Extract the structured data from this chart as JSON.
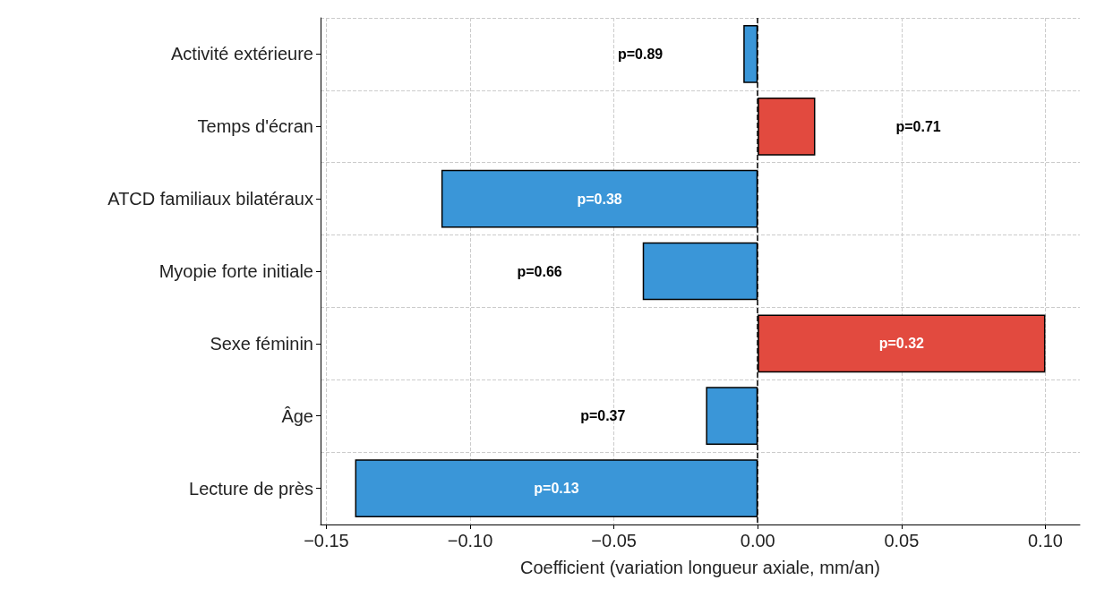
{
  "chart_data": {
    "type": "bar",
    "orientation": "horizontal",
    "xlabel": "Coefficient (variation longueur axiale, mm/an)",
    "categories": [
      "Activité extérieure",
      "Temps d'écran",
      "ATCD familiaux bilatéraux",
      "Myopie forte initiale",
      "Sexe féminin",
      "Âge",
      "Lecture de près"
    ],
    "values": [
      -0.005,
      0.02,
      -0.11,
      -0.04,
      0.1,
      -0.018,
      -0.14
    ],
    "colors": [
      "#3a96d8",
      "#e24a3f",
      "#3a96d8",
      "#3a96d8",
      "#e24a3f",
      "#3a96d8",
      "#3a96d8"
    ],
    "xlim": [
      -0.152,
      0.112
    ],
    "xticks": [
      {
        "value": -0.15,
        "label": "−0.15"
      },
      {
        "value": -0.1,
        "label": "−0.10"
      },
      {
        "value": -0.05,
        "label": "−0.05"
      },
      {
        "value": 0,
        "label": "0.00"
      },
      {
        "value": 0.05,
        "label": "0.05"
      },
      {
        "value": 0.1,
        "label": "0.10"
      }
    ],
    "ref_lines": [
      {
        "axis": "x",
        "value": 0,
        "color": "#000000",
        "line_style": "dashed"
      }
    ],
    "annotations": [
      "p=0.89",
      "p=0.71",
      "p=0.38",
      "p=0.66",
      "p=0.32",
      "p=0.37",
      "p=0.13"
    ],
    "grid": true
  }
}
